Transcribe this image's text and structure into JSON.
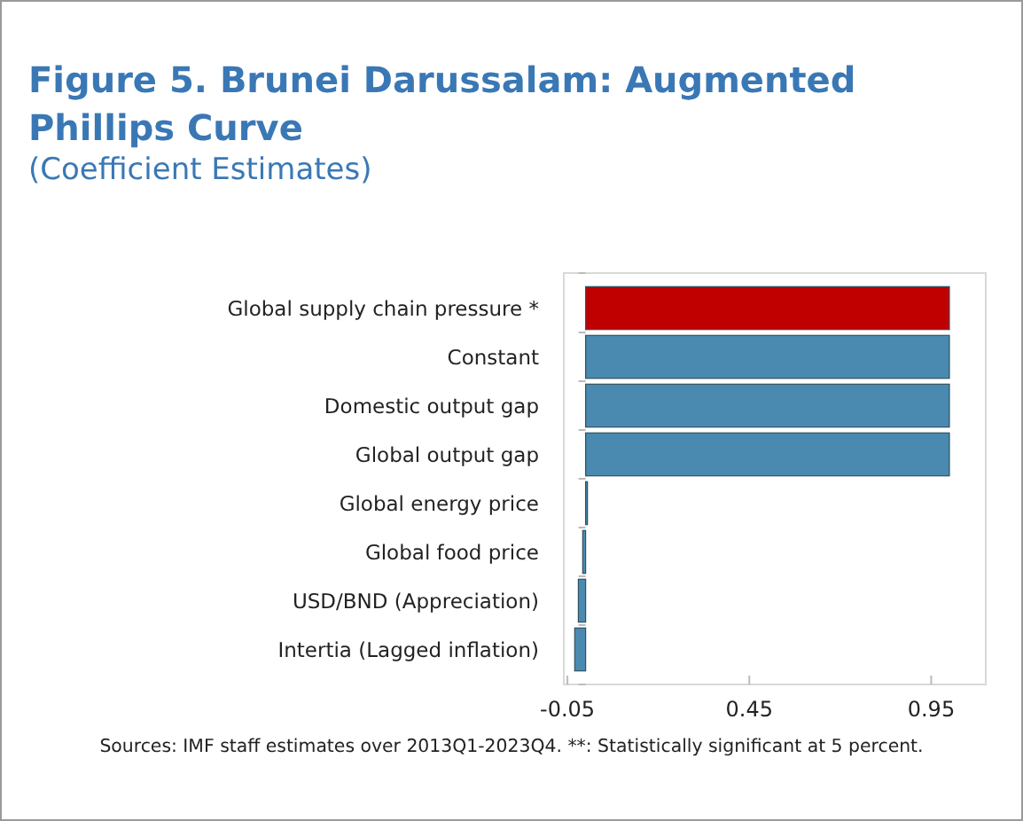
{
  "chart_data": {
    "type": "bar",
    "orientation": "horizontal",
    "title": "Figure 5. Brunei Darussalam: Augmented Phillips Curve",
    "subtitle": "(Coefficient Estimates)",
    "categories": [
      "Global supply chain pressure *",
      "Constant",
      "Domestic output gap",
      "Global output gap",
      "Global energy price",
      "Global food price",
      "USD/BND (Appreciation)",
      "Intertia (Lagged inflation)"
    ],
    "values": [
      1.0,
      1.0,
      1.0,
      1.0,
      0.005,
      -0.008,
      -0.02,
      -0.03
    ],
    "colors": [
      "#c00000",
      "#4a8ab0",
      "#4a8ab0",
      "#4a8ab0",
      "#4a8ab0",
      "#4a8ab0",
      "#4a8ab0",
      "#4a8ab0"
    ],
    "xlim": [
      -0.06,
      1.1
    ],
    "xticks": [
      -0.05,
      0.45,
      0.95
    ],
    "grid": false,
    "annotations": [
      "Sources: IMF staff estimates over 2013Q1-2023Q4. **: Statistically significant at 5 percent."
    ]
  }
}
